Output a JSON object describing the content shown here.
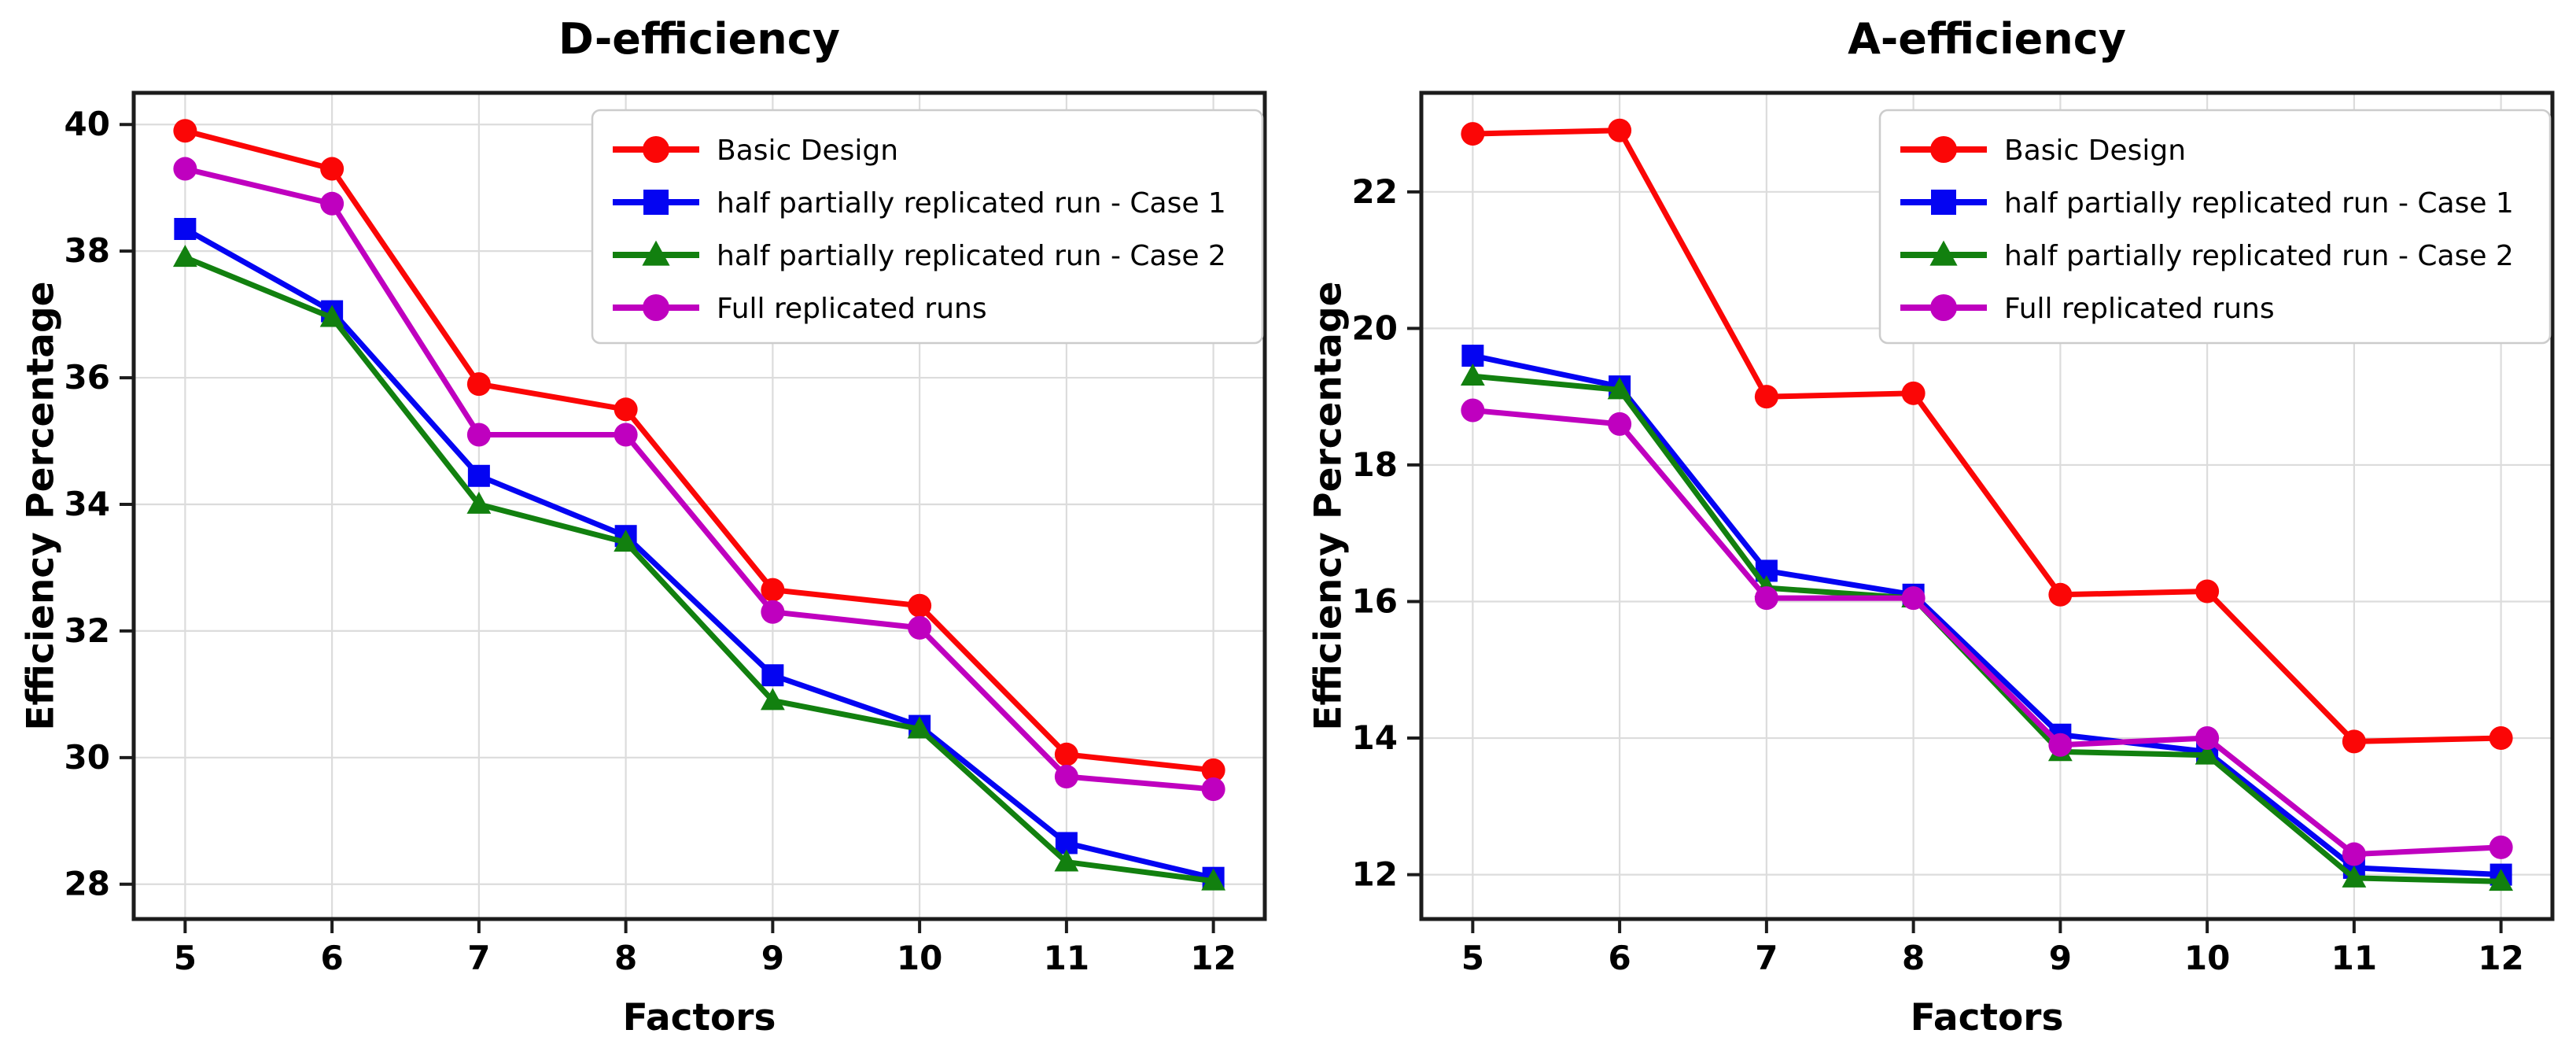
{
  "page": {
    "background": "#ffffff",
    "grid_color": "#dcdcdc",
    "spine_color": "#1c1c1c",
    "text_color": "#000000",
    "legend_border_color": "#cccccc"
  },
  "chart_data": [
    {
      "type": "line",
      "title": "D-efficiency",
      "xlabel": "Factors",
      "ylabel": "Efficiency Percentage",
      "x": [
        5,
        6,
        7,
        8,
        9,
        10,
        11,
        12
      ],
      "xticklabels": [
        "5",
        "6",
        "7",
        "8",
        "9",
        "10",
        "11",
        "12"
      ],
      "xlim": [
        4.65,
        12.35
      ],
      "ylim": [
        27.45,
        40.5
      ],
      "yticks": [
        28,
        30,
        32,
        34,
        36,
        38,
        40
      ],
      "yticklabels": [
        "28",
        "30",
        "32",
        "34",
        "36",
        "38",
        "40"
      ],
      "grid": true,
      "legend_position": "upper right",
      "series": [
        {
          "name": "Basic Design",
          "color": "#fb0606",
          "marker": "circle",
          "values": [
            39.9,
            39.3,
            35.9,
            35.5,
            32.65,
            32.4,
            30.05,
            29.8
          ]
        },
        {
          "name": "half partially replicated run - Case 1",
          "color": "#0404f2",
          "marker": "square",
          "values": [
            38.35,
            37.05,
            34.45,
            33.5,
            31.3,
            30.5,
            28.65,
            28.1
          ]
        },
        {
          "name": "half partially replicated run - Case 2",
          "color": "#12800f",
          "marker": "triangle",
          "values": [
            37.9,
            36.95,
            34.0,
            33.4,
            30.9,
            30.45,
            28.35,
            28.05
          ]
        },
        {
          "name": "Full replicated runs",
          "color": "#bf00bf",
          "marker": "circle",
          "values": [
            39.3,
            38.75,
            35.1,
            35.1,
            32.3,
            32.05,
            29.7,
            29.5
          ]
        }
      ]
    },
    {
      "type": "line",
      "title": "A-efficiency",
      "xlabel": "Factors",
      "ylabel": "Efficiency Percentage",
      "x": [
        5,
        6,
        7,
        8,
        9,
        10,
        11,
        12
      ],
      "xticklabels": [
        "5",
        "6",
        "7",
        "8",
        "9",
        "10",
        "11",
        "12"
      ],
      "xlim": [
        4.65,
        12.35
      ],
      "ylim": [
        11.35,
        23.45
      ],
      "yticks": [
        12,
        14,
        16,
        18,
        20,
        22
      ],
      "yticklabels": [
        "12",
        "14",
        "16",
        "18",
        "20",
        "22"
      ],
      "grid": true,
      "legend_position": "upper right",
      "series": [
        {
          "name": "Basic Design",
          "color": "#fb0606",
          "marker": "circle",
          "values": [
            22.85,
            22.9,
            19.0,
            19.05,
            16.1,
            16.15,
            13.95,
            14.0
          ]
        },
        {
          "name": "half partially replicated run - Case 1",
          "color": "#0404f2",
          "marker": "square",
          "values": [
            19.6,
            19.15,
            16.45,
            16.1,
            14.05,
            13.8,
            12.1,
            12.0
          ]
        },
        {
          "name": "half partially replicated run - Case 2",
          "color": "#12800f",
          "marker": "triangle",
          "values": [
            19.3,
            19.1,
            16.2,
            16.05,
            13.8,
            13.75,
            11.95,
            11.9
          ]
        },
        {
          "name": "Full replicated runs",
          "color": "#bf00bf",
          "marker": "circle",
          "values": [
            18.8,
            18.6,
            16.05,
            16.05,
            13.9,
            14.0,
            12.3,
            12.4
          ]
        }
      ]
    }
  ]
}
